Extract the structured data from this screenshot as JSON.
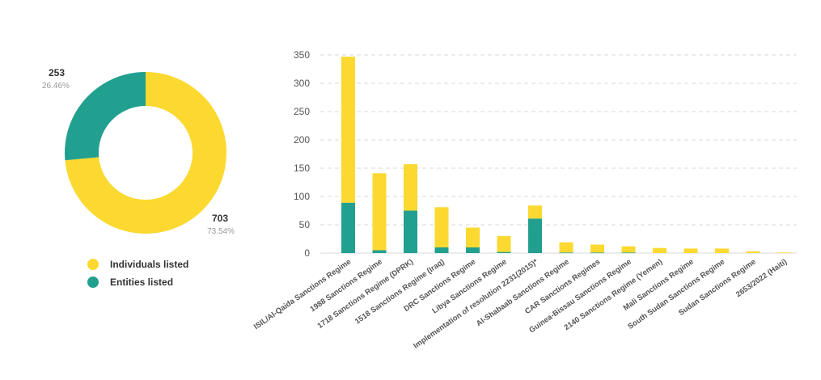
{
  "colors": {
    "individuals": "#FBD930",
    "entities": "#22A08F",
    "grid": "#DADADA",
    "axis_text": "#555555",
    "label_text": "#333333",
    "pct_text": "#999999"
  },
  "donut": {
    "slices": [
      {
        "name": "Individuals listed",
        "value": 703,
        "value_label": "703",
        "percent_label": "73.54%",
        "color_key": "individuals"
      },
      {
        "name": "Entities listed",
        "value": 253,
        "value_label": "253",
        "percent_label": "26.46%",
        "color_key": "entities"
      }
    ]
  },
  "legend": {
    "items": [
      {
        "label": "Individuals listed",
        "color_key": "individuals"
      },
      {
        "label": "Entities listed",
        "color_key": "entities"
      }
    ]
  },
  "chart_data": [
    {
      "type": "pie",
      "labels": [
        "Individuals listed",
        "Entities listed"
      ],
      "values": [
        703,
        253
      ],
      "percent_labels": [
        "73.54%",
        "26.46%"
      ],
      "donut": true
    },
    {
      "type": "bar",
      "stacked": true,
      "categories": [
        "ISIL/Al-Qaida Sanctions Regime",
        "1988 Sanctions Regime",
        "1718 Sanctions Regime (DPRK)",
        "1518 Sanctions Regime (Iraq)",
        "DRC Sanctions Regime",
        "Libya Sanctions Regime",
        "Implementation of resolution 2231(2015)*",
        "Al-Shabaab Sanctions Regime",
        "CAR Sanctions Regimes",
        "Guinea-Bissau Sanctions Regime",
        "2140 Sanctions Regime (Yemen)",
        "Mali Sanctions Regime",
        "South Sudan Sanctions Regime",
        "Sudan Sanctions Regime",
        "2653/2022 (Haiti)"
      ],
      "series": [
        {
          "name": "Entities listed",
          "color_key": "entities",
          "values": [
            89,
            5,
            75,
            10,
            10,
            2,
            61,
            1,
            1,
            1,
            0,
            0,
            0,
            0,
            0
          ]
        },
        {
          "name": "Individuals listed",
          "color_key": "individuals",
          "values": [
            258,
            136,
            82,
            71,
            35,
            28,
            23,
            18,
            14,
            11,
            9,
            8,
            8,
            3,
            1
          ]
        }
      ],
      "yticks": [
        0,
        50,
        100,
        150,
        200,
        250,
        300,
        350
      ],
      "ylim": [
        0,
        350
      ],
      "grid": true,
      "xlabel": "",
      "ylabel": ""
    }
  ]
}
